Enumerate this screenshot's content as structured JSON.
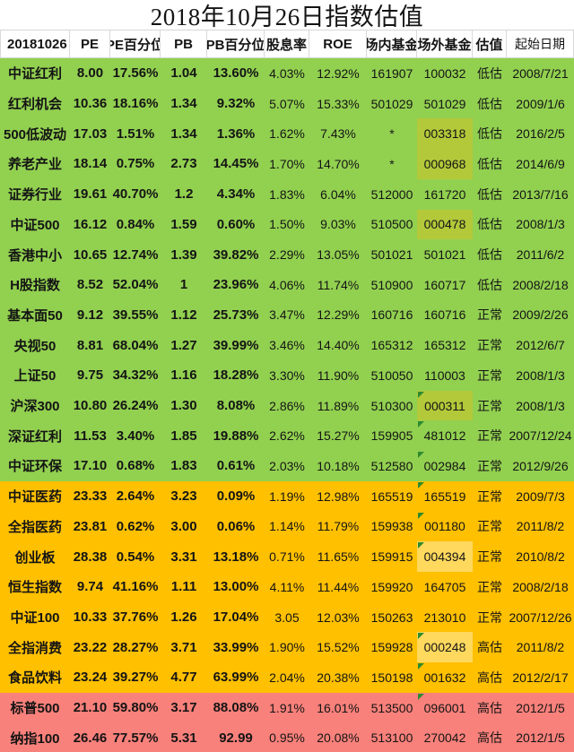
{
  "chart_data": {
    "type": "table",
    "title": "2018年10月26日指数估值",
    "columns": [
      "20181026",
      "PE",
      "PE百分位",
      "PB",
      "PB百分位",
      "股息率",
      "ROE",
      "场内基金",
      "场外基金",
      "估值",
      "起始日期"
    ],
    "rows": [
      {
        "name": "中证红利",
        "pe": "8.00",
        "pe_pct": "17.56%",
        "pb": "1.04",
        "pb_pct": "13.60%",
        "dividend_yield": "4.03%",
        "roe": "12.92%",
        "onsite_fund": "161907",
        "offsite_fund": "100032",
        "valuation": "低估",
        "start_date": "2008/7/21",
        "band": "green",
        "offsite_highlight": false,
        "offsite_marker": false
      },
      {
        "name": "红利机会",
        "pe": "10.36",
        "pe_pct": "18.16%",
        "pb": "1.34",
        "pb_pct": "9.32%",
        "dividend_yield": "5.07%",
        "roe": "15.33%",
        "onsite_fund": "501029",
        "offsite_fund": "501029",
        "valuation": "低估",
        "start_date": "2009/1/6",
        "band": "green",
        "offsite_highlight": false,
        "offsite_marker": false
      },
      {
        "name": "500低波动",
        "pe": "17.03",
        "pe_pct": "1.51%",
        "pb": "1.34",
        "pb_pct": "1.36%",
        "dividend_yield": "1.62%",
        "roe": "7.43%",
        "onsite_fund": "*",
        "offsite_fund": "003318",
        "valuation": "低估",
        "start_date": "2016/2/5",
        "band": "green",
        "offsite_highlight": true,
        "offsite_marker": false
      },
      {
        "name": "养老产业",
        "pe": "18.14",
        "pe_pct": "0.75%",
        "pb": "2.73",
        "pb_pct": "14.45%",
        "dividend_yield": "1.70%",
        "roe": "14.70%",
        "onsite_fund": "*",
        "offsite_fund": "000968",
        "valuation": "低估",
        "start_date": "2014/6/9",
        "band": "green",
        "offsite_highlight": true,
        "offsite_marker": false
      },
      {
        "name": "证券行业",
        "pe": "19.61",
        "pe_pct": "40.70%",
        "pb": "1.2",
        "pb_pct": "4.34%",
        "dividend_yield": "1.83%",
        "roe": "6.04%",
        "onsite_fund": "512000",
        "offsite_fund": "161720",
        "valuation": "低估",
        "start_date": "2013/7/16",
        "band": "green",
        "offsite_highlight": false,
        "offsite_marker": false
      },
      {
        "name": "中证500",
        "pe": "16.12",
        "pe_pct": "0.84%",
        "pb": "1.59",
        "pb_pct": "0.60%",
        "dividend_yield": "1.50%",
        "roe": "9.03%",
        "onsite_fund": "510500",
        "offsite_fund": "000478",
        "valuation": "低估",
        "start_date": "2008/1/3",
        "band": "green",
        "offsite_highlight": true,
        "offsite_marker": false
      },
      {
        "name": "香港中小",
        "pe": "10.65",
        "pe_pct": "12.74%",
        "pb": "1.39",
        "pb_pct": "39.82%",
        "dividend_yield": "2.29%",
        "roe": "13.05%",
        "onsite_fund": "501021",
        "offsite_fund": "501021",
        "valuation": "低估",
        "start_date": "2011/6/2",
        "band": "green",
        "offsite_highlight": false,
        "offsite_marker": false
      },
      {
        "name": "H股指数",
        "pe": "8.52",
        "pe_pct": "52.04%",
        "pb": "1",
        "pb_pct": "23.96%",
        "dividend_yield": "4.06%",
        "roe": "11.74%",
        "onsite_fund": "510900",
        "offsite_fund": "160717",
        "valuation": "低估",
        "start_date": "2008/2/18",
        "band": "green",
        "offsite_highlight": false,
        "offsite_marker": false
      },
      {
        "name": "基本面50",
        "pe": "9.12",
        "pe_pct": "39.55%",
        "pb": "1.12",
        "pb_pct": "25.73%",
        "dividend_yield": "3.47%",
        "roe": "12.29%",
        "onsite_fund": "160716",
        "offsite_fund": "160716",
        "valuation": "正常",
        "start_date": "2009/2/26",
        "band": "green",
        "offsite_highlight": false,
        "offsite_marker": false
      },
      {
        "name": "央视50",
        "pe": "8.81",
        "pe_pct": "68.04%",
        "pb": "1.27",
        "pb_pct": "39.99%",
        "dividend_yield": "3.46%",
        "roe": "14.40%",
        "onsite_fund": "165312",
        "offsite_fund": "165312",
        "valuation": "正常",
        "start_date": "2012/6/7",
        "band": "green",
        "offsite_highlight": false,
        "offsite_marker": false
      },
      {
        "name": "上证50",
        "pe": "9.75",
        "pe_pct": "34.32%",
        "pb": "1.16",
        "pb_pct": "18.28%",
        "dividend_yield": "3.30%",
        "roe": "11.90%",
        "onsite_fund": "510050",
        "offsite_fund": "110003",
        "valuation": "正常",
        "start_date": "2008/1/3",
        "band": "green",
        "offsite_highlight": false,
        "offsite_marker": false
      },
      {
        "name": "沪深300",
        "pe": "10.80",
        "pe_pct": "26.24%",
        "pb": "1.30",
        "pb_pct": "8.08%",
        "dividend_yield": "2.86%",
        "roe": "11.89%",
        "onsite_fund": "510300",
        "offsite_fund": "000311",
        "valuation": "正常",
        "start_date": "2008/1/3",
        "band": "green",
        "offsite_highlight": true,
        "offsite_marker": true
      },
      {
        "name": "深证红利",
        "pe": "11.53",
        "pe_pct": "3.40%",
        "pb": "1.85",
        "pb_pct": "19.88%",
        "dividend_yield": "2.62%",
        "roe": "15.27%",
        "onsite_fund": "159905",
        "offsite_fund": "481012",
        "valuation": "正常",
        "start_date": "2007/12/24",
        "band": "green",
        "offsite_highlight": false,
        "offsite_marker": true
      },
      {
        "name": "中证环保",
        "pe": "17.10",
        "pe_pct": "0.68%",
        "pb": "1.83",
        "pb_pct": "0.61%",
        "dividend_yield": "2.03%",
        "roe": "10.18%",
        "onsite_fund": "512580",
        "offsite_fund": "002984",
        "valuation": "正常",
        "start_date": "2012/9/26",
        "band": "green",
        "offsite_highlight": false,
        "offsite_marker": true
      },
      {
        "name": "中证医药",
        "pe": "23.33",
        "pe_pct": "2.64%",
        "pb": "3.23",
        "pb_pct": "0.09%",
        "dividend_yield": "1.19%",
        "roe": "12.98%",
        "onsite_fund": "165519",
        "offsite_fund": "165519",
        "valuation": "正常",
        "start_date": "2009/7/3",
        "band": "yellow",
        "offsite_highlight": false,
        "offsite_marker": true
      },
      {
        "name": "全指医药",
        "pe": "23.81",
        "pe_pct": "0.62%",
        "pb": "3.00",
        "pb_pct": "0.06%",
        "dividend_yield": "1.14%",
        "roe": "11.79%",
        "onsite_fund": "159938",
        "offsite_fund": "001180",
        "valuation": "正常",
        "start_date": "2011/8/2",
        "band": "yellow",
        "offsite_highlight": false,
        "offsite_marker": true
      },
      {
        "name": "创业板",
        "pe": "28.38",
        "pe_pct": "0.54%",
        "pb": "3.31",
        "pb_pct": "13.18%",
        "dividend_yield": "0.71%",
        "roe": "11.65%",
        "onsite_fund": "159915",
        "offsite_fund": "004394",
        "valuation": "正常",
        "start_date": "2010/8/2",
        "band": "yellow",
        "offsite_highlight": true,
        "offsite_marker": true
      },
      {
        "name": "恒生指数",
        "pe": "9.74",
        "pe_pct": "41.16%",
        "pb": "1.11",
        "pb_pct": "13.00%",
        "dividend_yield": "4.11%",
        "roe": "11.44%",
        "onsite_fund": "159920",
        "offsite_fund": "164705",
        "valuation": "正常",
        "start_date": "2008/2/18",
        "band": "yellow",
        "offsite_highlight": false,
        "offsite_marker": false
      },
      {
        "name": "中证100",
        "pe": "10.33",
        "pe_pct": "37.76%",
        "pb": "1.26",
        "pb_pct": "17.04%",
        "dividend_yield": "3.05",
        "roe": "12.03%",
        "onsite_fund": "150263",
        "offsite_fund": "213010",
        "valuation": "正常",
        "start_date": "2007/12/26",
        "band": "yellow",
        "offsite_highlight": false,
        "offsite_marker": false
      },
      {
        "name": "全指消费",
        "pe": "23.22",
        "pe_pct": "28.27%",
        "pb": "3.71",
        "pb_pct": "33.99%",
        "dividend_yield": "1.90%",
        "roe": "15.52%",
        "onsite_fund": "159928",
        "offsite_fund": "000248",
        "valuation": "高估",
        "start_date": "2011/8/2",
        "band": "yellow",
        "offsite_highlight": true,
        "offsite_marker": true
      },
      {
        "name": "食品饮料",
        "pe": "23.24",
        "pe_pct": "39.27%",
        "pb": "4.77",
        "pb_pct": "63.99%",
        "dividend_yield": "2.04%",
        "roe": "20.38%",
        "onsite_fund": "150198",
        "offsite_fund": "001632",
        "valuation": "高估",
        "start_date": "2012/2/17",
        "band": "yellow",
        "offsite_highlight": false,
        "offsite_marker": true
      },
      {
        "name": "标普500",
        "pe": "21.10",
        "pe_pct": "59.80%",
        "pb": "3.17",
        "pb_pct": "88.08%",
        "dividend_yield": "1.91%",
        "roe": "16.01%",
        "onsite_fund": "513500",
        "offsite_fund": "096001",
        "valuation": "高估",
        "start_date": "2012/1/5",
        "band": "red",
        "offsite_highlight": false,
        "offsite_marker": true
      },
      {
        "name": "纳指100",
        "pe": "26.46",
        "pe_pct": "77.57%",
        "pb": "5.31",
        "pb_pct": "92.99",
        "dividend_yield": "0.95%",
        "roe": "20.08%",
        "onsite_fund": "513100",
        "offsite_fund": "270042",
        "valuation": "高估",
        "start_date": "2012/1/5",
        "band": "red",
        "offsite_highlight": false,
        "offsite_marker": false
      }
    ],
    "valuation_labels": [
      "低估",
      "正常",
      "高估"
    ]
  },
  "colors": {
    "band_green": "#92d050",
    "band_yellow": "#ffc000",
    "band_red": "#f9817b",
    "cell_highlight_green": "#b3c93a",
    "cell_highlight_yellow": "#ffd95e",
    "corner_marker_green": "#2e8b2e",
    "header_background": "#ffffff",
    "text": "#141414"
  }
}
